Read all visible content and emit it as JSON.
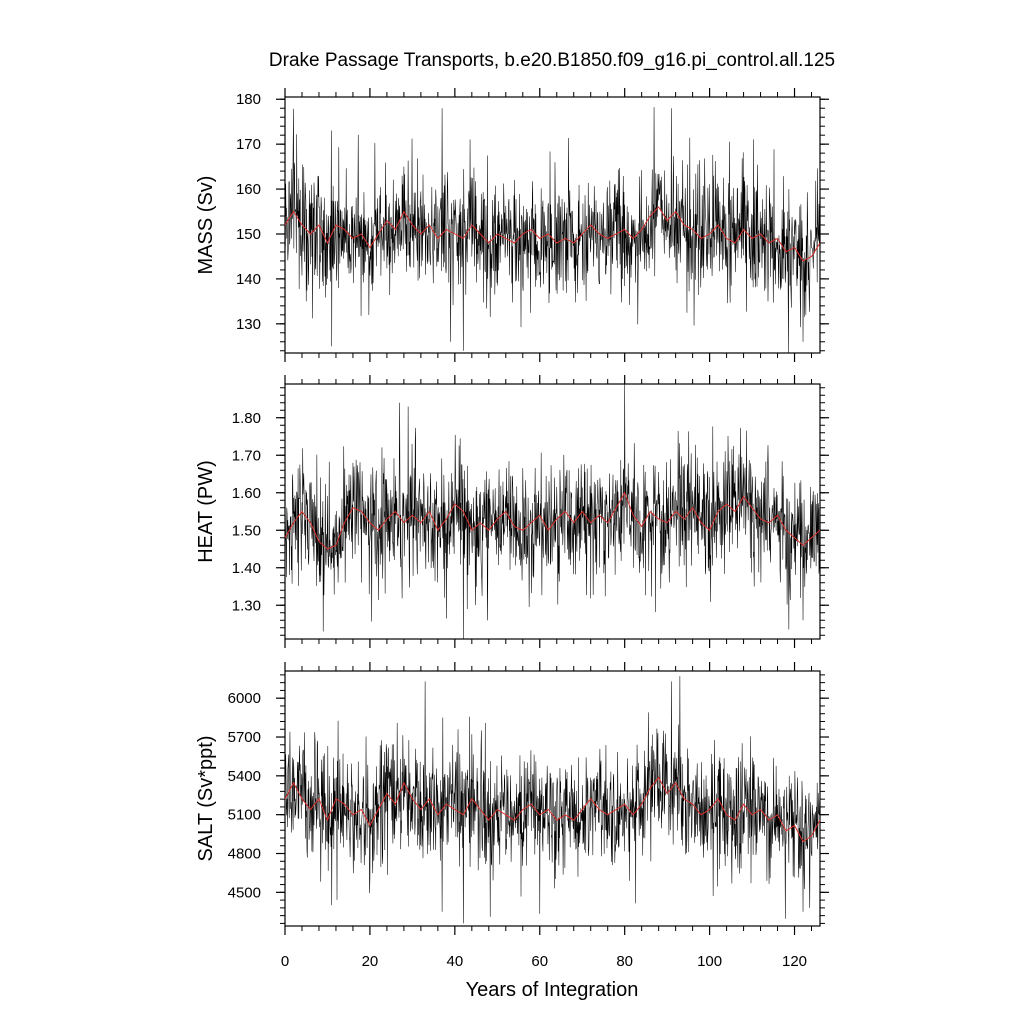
{
  "chart_data": {
    "type": "line",
    "title": "Drake Passage Transports, b.e20.B1850.f09_g16.pi_control.all.125",
    "xlabel": "Years of Integration",
    "xlim": [
      0,
      126
    ],
    "xticks": [
      "0",
      "20",
      "40",
      "60",
      "80",
      "100",
      "120"
    ],
    "panels": [
      {
        "name": "mass",
        "ylabel": "MASS (Sv)",
        "ylim": [
          123.5,
          180.5
        ],
        "yticks": [
          "130",
          "140",
          "150",
          "160",
          "170",
          "180"
        ],
        "mean": 150,
        "amplitude": 6.5,
        "spikes": [
          {
            "x": 5,
            "y": 135
          },
          {
            "x": 11,
            "y": 125
          },
          {
            "x": 28,
            "y": 165
          },
          {
            "x": 37,
            "y": 178
          },
          {
            "x": 39,
            "y": 126
          },
          {
            "x": 42,
            "y": 124
          },
          {
            "x": 91,
            "y": 178
          },
          {
            "x": 122,
            "y": 126
          }
        ],
        "smooth": [
          {
            "x": 0,
            "y": 152
          },
          {
            "x": 2,
            "y": 155
          },
          {
            "x": 4,
            "y": 152
          },
          {
            "x": 6,
            "y": 150
          },
          {
            "x": 8,
            "y": 152
          },
          {
            "x": 10,
            "y": 148
          },
          {
            "x": 12,
            "y": 152
          },
          {
            "x": 14,
            "y": 151
          },
          {
            "x": 16,
            "y": 149
          },
          {
            "x": 18,
            "y": 150
          },
          {
            "x": 20,
            "y": 147
          },
          {
            "x": 22,
            "y": 150
          },
          {
            "x": 24,
            "y": 153
          },
          {
            "x": 26,
            "y": 151
          },
          {
            "x": 28,
            "y": 155
          },
          {
            "x": 30,
            "y": 152
          },
          {
            "x": 32,
            "y": 150
          },
          {
            "x": 34,
            "y": 152
          },
          {
            "x": 36,
            "y": 149
          },
          {
            "x": 38,
            "y": 151
          },
          {
            "x": 40,
            "y": 150
          },
          {
            "x": 42,
            "y": 149
          },
          {
            "x": 44,
            "y": 152
          },
          {
            "x": 46,
            "y": 150
          },
          {
            "x": 48,
            "y": 148
          },
          {
            "x": 50,
            "y": 150
          },
          {
            "x": 52,
            "y": 149
          },
          {
            "x": 54,
            "y": 148
          },
          {
            "x": 56,
            "y": 150
          },
          {
            "x": 58,
            "y": 151
          },
          {
            "x": 60,
            "y": 149
          },
          {
            "x": 62,
            "y": 150
          },
          {
            "x": 64,
            "y": 148
          },
          {
            "x": 66,
            "y": 149
          },
          {
            "x": 68,
            "y": 148
          },
          {
            "x": 70,
            "y": 150
          },
          {
            "x": 72,
            "y": 152
          },
          {
            "x": 74,
            "y": 150
          },
          {
            "x": 76,
            "y": 149
          },
          {
            "x": 78,
            "y": 150
          },
          {
            "x": 80,
            "y": 151
          },
          {
            "x": 82,
            "y": 149
          },
          {
            "x": 84,
            "y": 151
          },
          {
            "x": 86,
            "y": 154
          },
          {
            "x": 88,
            "y": 156
          },
          {
            "x": 90,
            "y": 153
          },
          {
            "x": 92,
            "y": 155
          },
          {
            "x": 94,
            "y": 152
          },
          {
            "x": 96,
            "y": 151
          },
          {
            "x": 98,
            "y": 149
          },
          {
            "x": 100,
            "y": 150
          },
          {
            "x": 102,
            "y": 152
          },
          {
            "x": 104,
            "y": 149
          },
          {
            "x": 106,
            "y": 148
          },
          {
            "x": 108,
            "y": 151
          },
          {
            "x": 110,
            "y": 149
          },
          {
            "x": 112,
            "y": 150
          },
          {
            "x": 114,
            "y": 148
          },
          {
            "x": 116,
            "y": 149
          },
          {
            "x": 118,
            "y": 146
          },
          {
            "x": 120,
            "y": 147
          },
          {
            "x": 122,
            "y": 144
          },
          {
            "x": 124,
            "y": 145
          },
          {
            "x": 126,
            "y": 148
          }
        ]
      },
      {
        "name": "heat",
        "ylabel": "HEAT (PW)",
        "ylim": [
          1.21,
          1.89
        ],
        "yticks": [
          "1.30",
          "1.40",
          "1.50",
          "1.60",
          "1.70",
          "1.80"
        ],
        "mean": 1.51,
        "amplitude": 0.075,
        "spikes": [
          {
            "x": 9,
            "y": 1.23
          },
          {
            "x": 27,
            "y": 1.84
          },
          {
            "x": 29,
            "y": 1.83
          },
          {
            "x": 42,
            "y": 1.21
          },
          {
            "x": 80,
            "y": 1.89
          },
          {
            "x": 122,
            "y": 1.26
          }
        ],
        "smooth": [
          {
            "x": 0,
            "y": 1.48
          },
          {
            "x": 2,
            "y": 1.52
          },
          {
            "x": 4,
            "y": 1.55
          },
          {
            "x": 6,
            "y": 1.52
          },
          {
            "x": 8,
            "y": 1.47
          },
          {
            "x": 10,
            "y": 1.45
          },
          {
            "x": 12,
            "y": 1.46
          },
          {
            "x": 14,
            "y": 1.52
          },
          {
            "x": 16,
            "y": 1.56
          },
          {
            "x": 18,
            "y": 1.55
          },
          {
            "x": 20,
            "y": 1.52
          },
          {
            "x": 22,
            "y": 1.5
          },
          {
            "x": 24,
            "y": 1.53
          },
          {
            "x": 26,
            "y": 1.55
          },
          {
            "x": 28,
            "y": 1.52
          },
          {
            "x": 30,
            "y": 1.54
          },
          {
            "x": 32,
            "y": 1.52
          },
          {
            "x": 34,
            "y": 1.55
          },
          {
            "x": 36,
            "y": 1.5
          },
          {
            "x": 38,
            "y": 1.53
          },
          {
            "x": 40,
            "y": 1.57
          },
          {
            "x": 42,
            "y": 1.55
          },
          {
            "x": 44,
            "y": 1.5
          },
          {
            "x": 46,
            "y": 1.52
          },
          {
            "x": 48,
            "y": 1.5
          },
          {
            "x": 50,
            "y": 1.53
          },
          {
            "x": 52,
            "y": 1.55
          },
          {
            "x": 54,
            "y": 1.51
          },
          {
            "x": 56,
            "y": 1.5
          },
          {
            "x": 58,
            "y": 1.52
          },
          {
            "x": 60,
            "y": 1.54
          },
          {
            "x": 62,
            "y": 1.5
          },
          {
            "x": 64,
            "y": 1.53
          },
          {
            "x": 66,
            "y": 1.55
          },
          {
            "x": 68,
            "y": 1.52
          },
          {
            "x": 70,
            "y": 1.55
          },
          {
            "x": 72,
            "y": 1.52
          },
          {
            "x": 74,
            "y": 1.54
          },
          {
            "x": 76,
            "y": 1.52
          },
          {
            "x": 78,
            "y": 1.56
          },
          {
            "x": 80,
            "y": 1.6
          },
          {
            "x": 82,
            "y": 1.54
          },
          {
            "x": 84,
            "y": 1.51
          },
          {
            "x": 86,
            "y": 1.55
          },
          {
            "x": 88,
            "y": 1.53
          },
          {
            "x": 90,
            "y": 1.52
          },
          {
            "x": 92,
            "y": 1.55
          },
          {
            "x": 94,
            "y": 1.53
          },
          {
            "x": 96,
            "y": 1.56
          },
          {
            "x": 98,
            "y": 1.52
          },
          {
            "x": 100,
            "y": 1.5
          },
          {
            "x": 102,
            "y": 1.55
          },
          {
            "x": 104,
            "y": 1.57
          },
          {
            "x": 106,
            "y": 1.55
          },
          {
            "x": 108,
            "y": 1.59
          },
          {
            "x": 110,
            "y": 1.56
          },
          {
            "x": 112,
            "y": 1.53
          },
          {
            "x": 114,
            "y": 1.52
          },
          {
            "x": 116,
            "y": 1.54
          },
          {
            "x": 118,
            "y": 1.5
          },
          {
            "x": 120,
            "y": 1.48
          },
          {
            "x": 122,
            "y": 1.46
          },
          {
            "x": 124,
            "y": 1.48
          },
          {
            "x": 126,
            "y": 1.5
          }
        ]
      },
      {
        "name": "salt",
        "ylabel": "SALT (Sv*ppt)",
        "ylim": [
          4240,
          6210
        ],
        "yticks": [
          "4500",
          "4800",
          "5100",
          "5400",
          "5700",
          "6000"
        ],
        "mean": 5140,
        "amplitude": 225,
        "spikes": [
          {
            "x": 11,
            "y": 4400
          },
          {
            "x": 33,
            "y": 6130
          },
          {
            "x": 37,
            "y": 4350
          },
          {
            "x": 42,
            "y": 4260
          },
          {
            "x": 91,
            "y": 6130
          },
          {
            "x": 93,
            "y": 6170
          },
          {
            "x": 122,
            "y": 4350
          }
        ]
      }
    ]
  }
}
